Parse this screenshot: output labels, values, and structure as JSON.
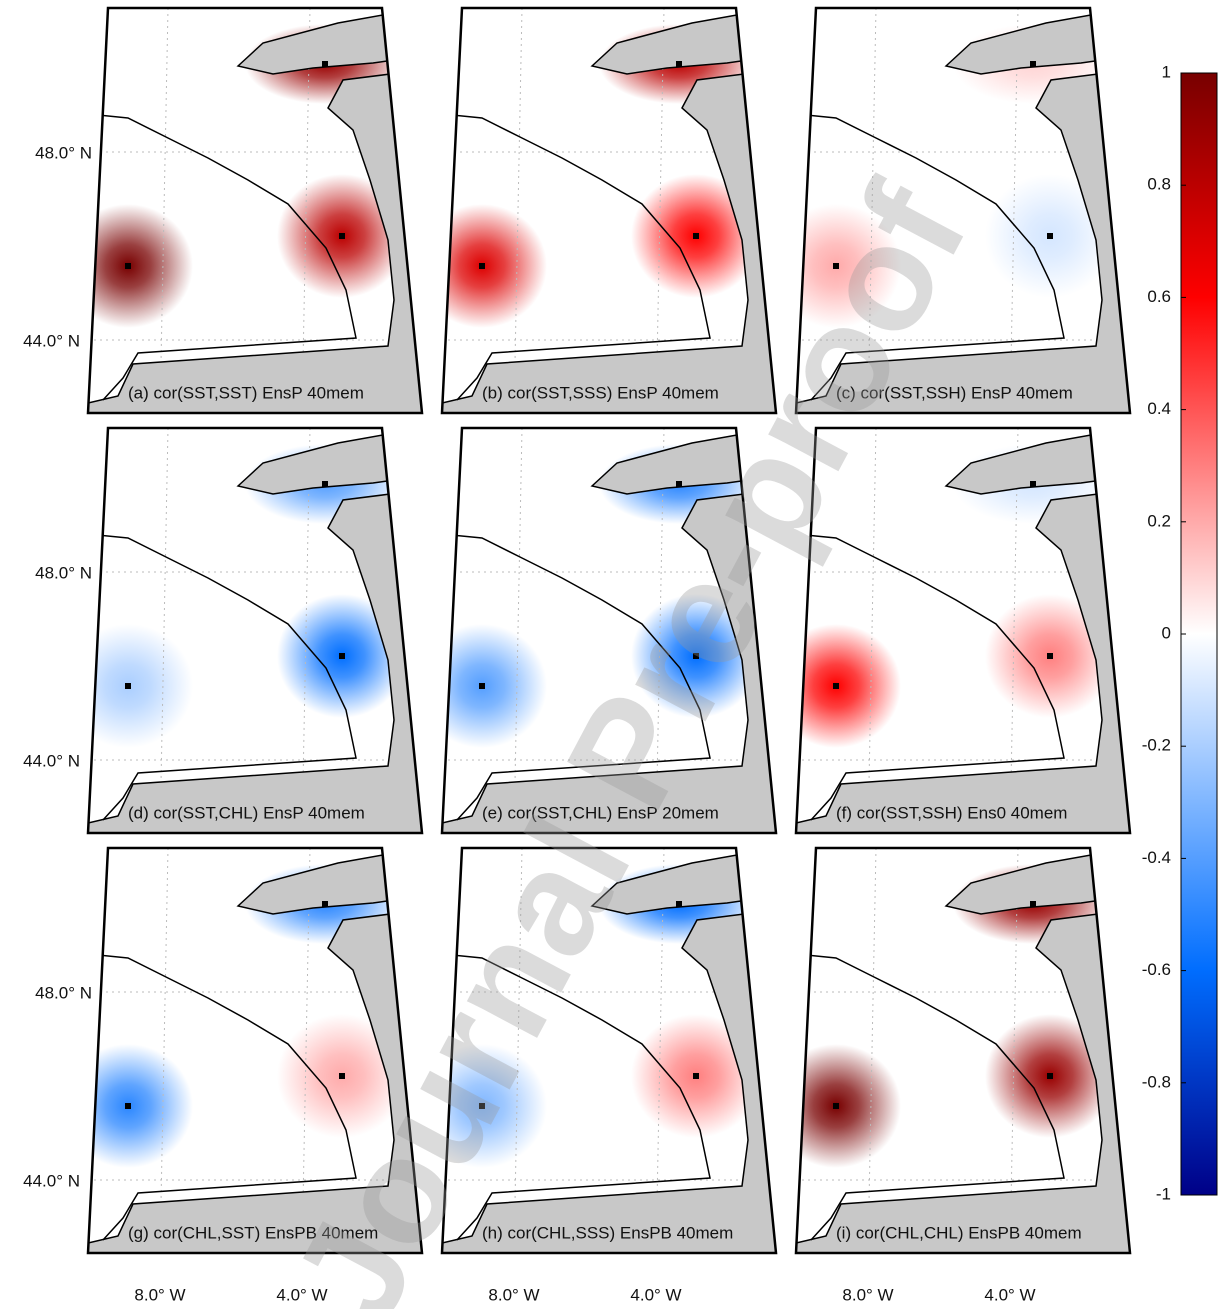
{
  "panels": [
    {
      "label": "(a) cor(SST,SST) EnsP 40mem",
      "peaks": [
        1,
        0.8,
        0.9
      ]
    },
    {
      "label": "(b) cor(SST,SSS) EnsP 40mem",
      "peaks": [
        0.7,
        0.6,
        0.8
      ]
    },
    {
      "label": "(c) cor(SST,SSH) EnsP 40mem",
      "peaks": [
        0.2,
        -0.1,
        0.1
      ]
    },
    {
      "label": "(d) cor(SST,CHL) EnsP 40mem",
      "peaks": [
        -0.2,
        -0.6,
        -0.4
      ]
    },
    {
      "label": "(e) cor(SST,CHL) EnsP 20mem",
      "peaks": [
        -0.4,
        -0.6,
        -0.5
      ]
    },
    {
      "label": "(f) cor(SST,SSH) Ens0 40mem",
      "peaks": [
        0.6,
        0.3,
        -0.1
      ]
    },
    {
      "label": "(g) cor(CHL,SST) EnsPB 40mem",
      "peaks": [
        -0.5,
        0.2,
        -0.5
      ]
    },
    {
      "label": "(h) cor(CHL,SSS) EnsPB 40mem",
      "peaks": [
        -0.3,
        0.3,
        -0.6
      ]
    },
    {
      "label": "(i) cor(CHL,CHL) EnsPB 40mem",
      "peaks": [
        1,
        0.9,
        0.9
      ]
    }
  ],
  "lat_labels": [
    "48.0° N",
    "44.0° N"
  ],
  "lon_labels": [
    "8.0° W",
    "4.0° W"
  ],
  "colorbar": {
    "range": [
      -1,
      1
    ],
    "ticks": [
      1,
      0.8,
      0.6,
      0.4,
      0.2,
      0,
      -0.2,
      -0.4,
      -0.6,
      -0.8,
      -1
    ]
  },
  "watermark": "Journal Pre-proof"
}
